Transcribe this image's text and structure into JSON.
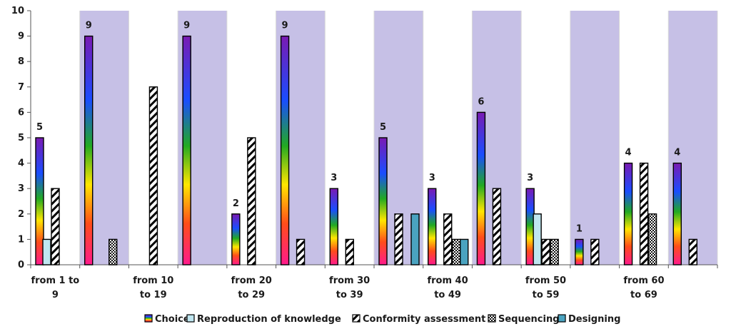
{
  "chart_data": {
    "type": "bar",
    "ylim": [
      0,
      10
    ],
    "yticks": [
      0,
      1,
      2,
      3,
      4,
      5,
      6,
      7,
      8,
      9,
      10
    ],
    "grid": false,
    "legend_position": "bottom",
    "groups": 14,
    "shaded_groups": [
      1,
      3,
      5,
      7,
      9,
      11,
      13
    ],
    "shade_color": "#c6c0e6",
    "category_labels": [
      {
        "group": 0,
        "lines": [
          "from 1 to",
          "9"
        ]
      },
      {
        "group": 2,
        "lines": [
          "from 10",
          "to 19"
        ]
      },
      {
        "group": 4,
        "lines": [
          "from 20",
          "to 29"
        ]
      },
      {
        "group": 6,
        "lines": [
          "from 30",
          "to 39"
        ]
      },
      {
        "group": 8,
        "lines": [
          "from 40",
          "to 49"
        ]
      },
      {
        "group": 10,
        "lines": [
          "from 50",
          "to 59"
        ]
      },
      {
        "group": 12,
        "lines": [
          "from 60",
          "to 69"
        ]
      }
    ],
    "series": [
      {
        "name": "Choice",
        "fill": "rainbow",
        "values": [
          5,
          9,
          0,
          9,
          2,
          9,
          3,
          5,
          3,
          6,
          3,
          1,
          4,
          4
        ],
        "show_labels": true
      },
      {
        "name": "Reproduction of knowledge",
        "fill": "#bfe6f0",
        "values": [
          1,
          0,
          0,
          0,
          0,
          0,
          0,
          0,
          0,
          0,
          2,
          0,
          0,
          0
        ]
      },
      {
        "name": "Conformity assessment",
        "fill": "hatch",
        "values": [
          3,
          0,
          7,
          0,
          5,
          1,
          1,
          2,
          2,
          3,
          1,
          1,
          4,
          1
        ]
      },
      {
        "name": "Sequencing",
        "fill": "checker",
        "values": [
          0,
          1,
          0,
          0,
          0,
          0,
          0,
          0,
          1,
          0,
          1,
          0,
          2,
          0
        ]
      },
      {
        "name": "Designing",
        "fill": "#4aa3c0",
        "values": [
          0,
          0,
          0,
          0,
          0,
          0,
          0,
          2,
          1,
          0,
          0,
          0,
          0,
          0
        ]
      }
    ]
  }
}
